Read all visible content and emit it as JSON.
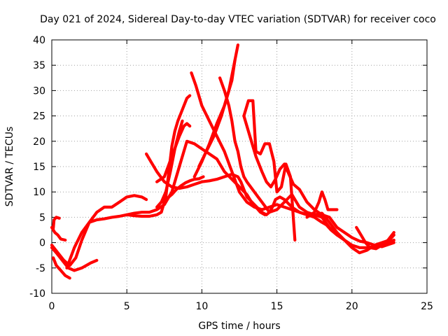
{
  "chart_data": {
    "type": "line",
    "title": "Day 021 of 2024, Sidereal Day-to-day VTEC variation (SDTVAR) for receiver coco",
    "xlabel": "GPS time / hours",
    "ylabel": "SDTVAR / TECUs",
    "xlim": [
      0,
      25
    ],
    "ylim": [
      -10,
      40
    ],
    "xticks": [
      0,
      5,
      10,
      15,
      20,
      25
    ],
    "yticks": [
      -10,
      -5,
      0,
      5,
      10,
      15,
      20,
      25,
      30,
      35,
      40
    ],
    "grid": true,
    "color": "#ff0000",
    "series": [
      {
        "name": "trace-1",
        "x": [
          0.0,
          0.4,
          0.8,
          1.2,
          1.6,
          2.0,
          2.5,
          3.0,
          3.5,
          4.0,
          4.5,
          5.0,
          5.5,
          6.0,
          6.3
        ],
        "y": [
          -0.5,
          -2.0,
          -3.5,
          -4.5,
          -3.0,
          0.5,
          4.0,
          6.0,
          7.0,
          7.0,
          8.0,
          9.0,
          9.3,
          9.0,
          8.5
        ]
      },
      {
        "name": "trace-2",
        "x": [
          0.0,
          0.3,
          0.7,
          1.1,
          1.5,
          2.0,
          2.6,
          3.0
        ],
        "y": [
          -1.0,
          -2.0,
          -3.5,
          -5.0,
          -5.5,
          -5.0,
          -4.0,
          -3.5
        ]
      },
      {
        "name": "trace-3",
        "x": [
          0.1,
          0.3,
          0.6,
          0.9,
          1.2
        ],
        "y": [
          -3.0,
          -4.5,
          -5.5,
          -6.5,
          -7.0
        ]
      },
      {
        "name": "trace-4",
        "x": [
          0.0,
          0.2,
          0.4,
          0.6,
          0.9
        ],
        "y": [
          3.0,
          2.0,
          1.5,
          0.7,
          0.5
        ]
      },
      {
        "name": "trace-5",
        "x": [
          0.1,
          0.15,
          0.3,
          0.5
        ],
        "y": [
          2.8,
          4.5,
          5.0,
          4.8
        ]
      },
      {
        "name": "trace-6",
        "x": [
          1.0,
          1.5,
          2.0,
          2.5,
          3.0,
          3.5,
          4.0,
          4.5,
          5.0,
          5.5,
          6.0,
          6.5,
          7.0,
          7.5,
          8.0,
          8.5,
          9.0,
          9.5,
          10.0,
          10.5,
          11.0,
          11.5,
          12.0,
          12.5,
          13.0,
          13.3,
          13.6,
          13.9,
          14.2
        ],
        "y": [
          -5.0,
          -1.0,
          2.0,
          4.0,
          4.5,
          4.7,
          5.0,
          5.2,
          5.5,
          5.8,
          6.0,
          6.0,
          6.5,
          7.5,
          10.0,
          15.0,
          20.0,
          19.5,
          18.5,
          17.5,
          16.5,
          14.0,
          12.5,
          11.0,
          9.5,
          8.0,
          7.0,
          6.0,
          5.5
        ]
      },
      {
        "name": "trace-7",
        "x": [
          6.3,
          6.6,
          7.0,
          7.5,
          8.0,
          8.5,
          9.0,
          9.5,
          10.0,
          10.5,
          11.0,
          11.5,
          12.0,
          12.4,
          12.6,
          12.8,
          13.0,
          13.5,
          14.0,
          14.3,
          14.5,
          14.7,
          14.9,
          15.2,
          15.5,
          16.0,
          16.5,
          17.0,
          17.5,
          18.0,
          18.3,
          18.6,
          19.0
        ],
        "y": [
          17.5,
          16.0,
          14.0,
          12.0,
          11.0,
          10.7,
          11.0,
          11.5,
          12.0,
          12.2,
          12.5,
          13.0,
          13.5,
          13.0,
          12.0,
          10.5,
          9.0,
          7.5,
          6.0,
          5.5,
          6.0,
          7.0,
          8.5,
          9.0,
          8.5,
          7.0,
          6.0,
          5.5,
          5.0,
          4.0,
          3.5,
          2.5,
          1.5
        ]
      },
      {
        "name": "trace-8",
        "x": [
          5.0,
          5.5,
          6.0,
          6.5,
          7.0,
          7.3,
          7.6,
          7.8,
          8.0,
          8.2,
          8.4,
          8.6,
          8.8,
          9.0,
          9.2
        ],
        "y": [
          5.5,
          5.3,
          5.2,
          5.2,
          5.5,
          6.0,
          9.0,
          14.0,
          19.0,
          22.0,
          24.0,
          25.5,
          27.0,
          28.5,
          29.0
        ]
      },
      {
        "name": "trace-9",
        "x": [
          7.0,
          7.3,
          7.6,
          7.9,
          8.2,
          8.5,
          8.7
        ],
        "y": [
          7.0,
          8.0,
          10.0,
          14.0,
          18.5,
          22.0,
          24.0
        ]
      },
      {
        "name": "trace-10",
        "x": [
          7.3,
          7.6,
          8.0,
          8.3,
          8.6,
          8.9,
          9.2,
          9.5,
          9.8,
          10.1
        ],
        "y": [
          8.0,
          8.5,
          9.5,
          10.5,
          11.2,
          11.8,
          12.2,
          12.5,
          12.6,
          13.0
        ]
      },
      {
        "name": "trace-11",
        "x": [
          7.0,
          7.5,
          8.0,
          8.5,
          8.8,
          9.0,
          9.2
        ],
        "y": [
          12.0,
          13.0,
          17.0,
          21.0,
          23.0,
          23.5,
          23.0
        ]
      },
      {
        "name": "trace-12",
        "x": [
          9.3,
          9.6,
          10.0,
          10.5,
          11.0,
          11.5,
          12.0,
          12.5,
          13.0,
          13.5,
          14.0,
          14.5,
          15.0,
          15.5,
          16.0,
          16.5,
          17.0,
          17.5,
          18.0,
          18.5,
          19.0,
          19.5,
          20.0,
          20.5,
          21.0,
          21.5,
          22.0,
          22.5,
          22.8
        ],
        "y": [
          33.5,
          31.0,
          27.0,
          24.0,
          21.0,
          18.0,
          14.0,
          10.0,
          8.0,
          7.0,
          6.5,
          7.0,
          7.5,
          7.0,
          6.5,
          6.0,
          5.5,
          5.5,
          5.8,
          4.0,
          2.0,
          0.5,
          -1.0,
          -2.0,
          -1.5,
          -0.5,
          0.0,
          0.5,
          1.5
        ]
      },
      {
        "name": "trace-13",
        "x": [
          11.2,
          11.5,
          11.8,
          12.0,
          12.2,
          12.4,
          12.6,
          12.8,
          13.0,
          13.5,
          14.0,
          14.5,
          15.0,
          15.5,
          16.0,
          16.5,
          17.0,
          17.5,
          18.0,
          18.5,
          19.0,
          19.5,
          20.0,
          20.5,
          21.0,
          21.5,
          22.0,
          22.5,
          22.8
        ],
        "y": [
          32.5,
          30.0,
          27.0,
          24.0,
          20.0,
          18.0,
          15.0,
          13.0,
          12.0,
          10.0,
          8.0,
          6.0,
          6.5,
          8.0,
          9.5,
          7.0,
          6.0,
          5.5,
          5.0,
          3.0,
          1.5,
          0.5,
          -0.5,
          -1.0,
          -1.0,
          -0.8,
          -0.5,
          0.0,
          0.5
        ]
      },
      {
        "name": "trace-14",
        "x": [
          9.8,
          10.3,
          10.8,
          11.3,
          11.7,
          12.0,
          12.2,
          12.4
        ],
        "y": [
          15.0,
          18.0,
          21.0,
          25.0,
          29.0,
          32.0,
          36.0,
          39.0
        ]
      },
      {
        "name": "trace-15",
        "x": [
          9.5,
          10.0,
          10.5,
          11.0,
          11.5,
          11.8,
          12.0,
          12.2
        ],
        "y": [
          13.0,
          16.0,
          19.5,
          23.5,
          27.0,
          30.0,
          33.0,
          36.0
        ]
      },
      {
        "name": "trace-16",
        "x": [
          12.8,
          13.1,
          13.4,
          13.6,
          13.9,
          14.2,
          14.5,
          14.8,
          15.0,
          15.3,
          15.6,
          15.9,
          16.2
        ],
        "y": [
          25.0,
          28.0,
          28.0,
          18.0,
          17.5,
          19.5,
          19.5,
          16.0,
          10.0,
          11.0,
          15.5,
          13.0,
          0.5
        ]
      },
      {
        "name": "trace-17",
        "x": [
          12.8,
          13.2,
          13.6,
          14.0,
          14.3,
          14.6,
          14.9,
          15.2,
          15.5,
          15.8,
          16.1,
          16.5,
          17.0,
          17.5,
          18.0,
          18.5,
          19.0,
          19.5,
          20.0,
          20.5,
          21.0,
          21.5,
          22.0,
          22.5,
          22.8
        ],
        "y": [
          25.0,
          21.0,
          17.0,
          14.0,
          12.0,
          11.0,
          12.5,
          14.5,
          15.5,
          13.5,
          11.5,
          10.5,
          8.0,
          6.5,
          5.5,
          5.0,
          3.0,
          2.0,
          1.0,
          0.3,
          0.0,
          -0.5,
          -0.8,
          -0.3,
          0.0
        ]
      },
      {
        "name": "trace-18",
        "x": [
          17.0,
          17.5,
          17.8,
          18.0,
          18.2,
          18.4,
          18.7,
          19.0
        ],
        "y": [
          5.0,
          6.0,
          8.0,
          10.0,
          8.5,
          6.5,
          6.5,
          6.5
        ]
      },
      {
        "name": "trace-19",
        "x": [
          20.3,
          20.6,
          20.9,
          21.2,
          21.6,
          22.0,
          22.4,
          22.8
        ],
        "y": [
          3.0,
          1.5,
          0.0,
          -1.0,
          -1.2,
          -0.5,
          0.5,
          2.0
        ]
      }
    ]
  }
}
